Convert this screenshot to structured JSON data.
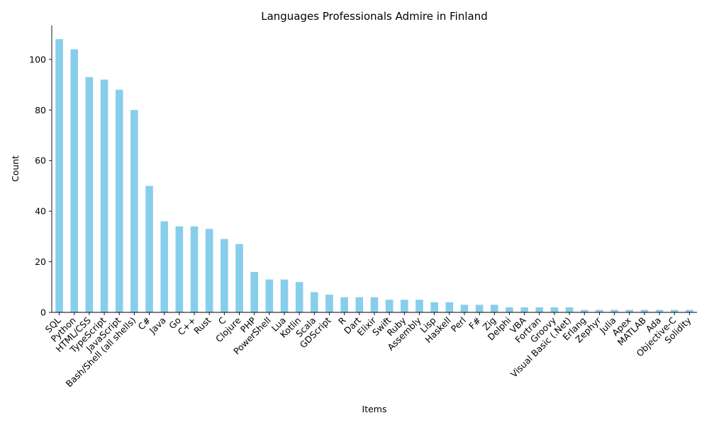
{
  "chart_data": {
    "type": "bar",
    "title": "Languages Professionals Admire in Finland",
    "xlabel": "Items",
    "ylabel": "Count",
    "ylim": [
      0,
      113.4
    ],
    "yticks": [
      0,
      20,
      40,
      60,
      80,
      100
    ],
    "grid": false,
    "legend": "none",
    "bar_color": "#87ceeb",
    "categories": [
      "SQL",
      "Python",
      "HTML/CSS",
      "TypeScript",
      "JavaScript",
      "Bash/Shell (all shells)",
      "C#",
      "Java",
      "Go",
      "C++",
      "Rust",
      "C",
      "Clojure",
      "PHP",
      "PowerShell",
      "Lua",
      "Kotlin",
      "Scala",
      "GDScript",
      "R",
      "Dart",
      "Elixir",
      "Swift",
      "Ruby",
      "Assembly",
      "Lisp",
      "Haskell",
      "Perl",
      "F#",
      "Zig",
      "Delphi",
      "VBA",
      "Fortran",
      "Groovy",
      "Visual Basic (.Net)",
      "Erlang",
      "Zephyr",
      "Julia",
      "Apex",
      "MATLAB",
      "Ada",
      "Objective-C",
      "Solidity"
    ],
    "values": [
      108,
      104,
      93,
      92,
      88,
      80,
      50,
      36,
      34,
      34,
      33,
      29,
      27,
      16,
      13,
      13,
      12,
      8,
      7,
      6,
      6,
      6,
      5,
      5,
      5,
      4,
      4,
      3,
      3,
      3,
      2,
      2,
      2,
      2,
      2,
      1,
      1,
      1,
      1,
      1,
      1,
      1,
      1
    ]
  }
}
